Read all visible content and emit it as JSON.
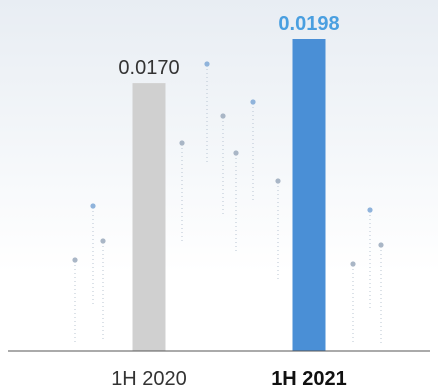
{
  "chart_data": {
    "type": "bar",
    "categories": [
      "1H 2020",
      "1H 2021"
    ],
    "values": [
      0.017,
      0.0198
    ],
    "value_labels": [
      "0.0170",
      "0.0198"
    ],
    "ylim": [
      0,
      0.0198
    ],
    "colors": [
      "#d0d0d0",
      "#4a8fd6"
    ],
    "highlight_index": 1,
    "grid": false,
    "legend": "none"
  }
}
